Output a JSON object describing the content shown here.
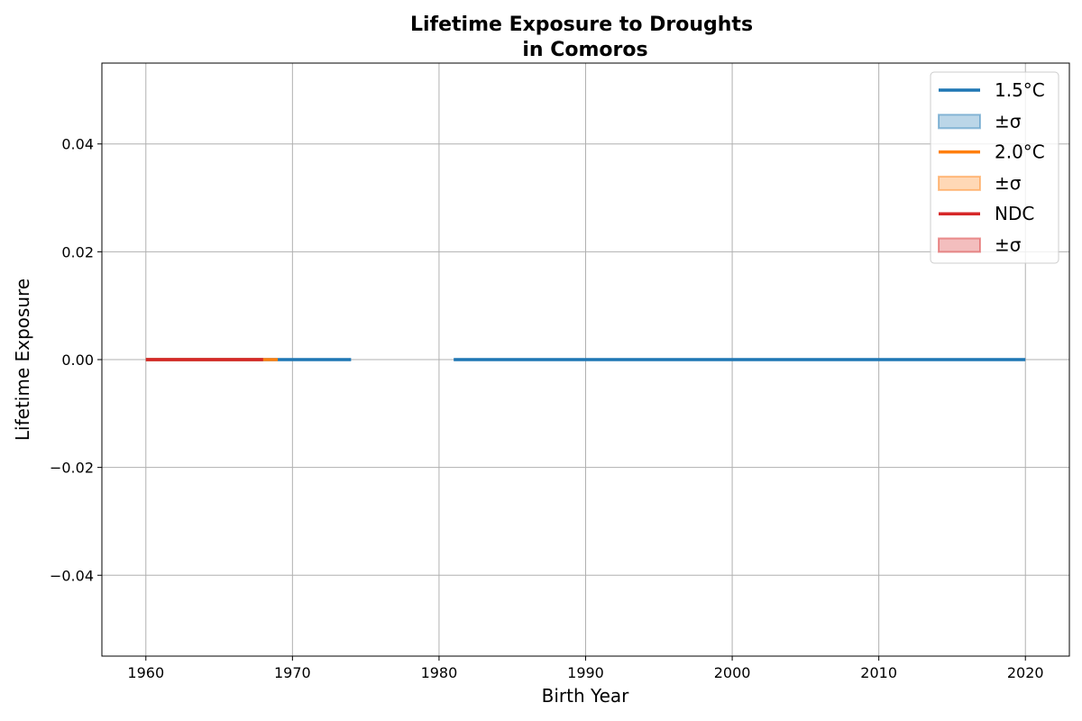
{
  "chart_data": {
    "type": "line",
    "title": [
      "Lifetime Exposure to Droughts",
      "in Comoros"
    ],
    "xlabel": "Birth Year",
    "ylabel": "Lifetime Exposure",
    "xlim": [
      1957,
      2023
    ],
    "ylim": [
      -0.055,
      0.055
    ],
    "xticks": [
      1960,
      1970,
      1980,
      1990,
      2000,
      2010,
      2020
    ],
    "yticks": [
      -0.04,
      -0.02,
      0.0,
      0.02,
      0.04
    ],
    "ytick_labels": [
      "−0.04",
      "−0.02",
      "0.00",
      "0.02",
      "0.04"
    ],
    "grid": true,
    "legend_position": "top-right",
    "series": [
      {
        "name": "1.5°C",
        "color": "#1f77b4",
        "band_label": "±σ",
        "segments": [
          {
            "x": [
              1960,
              1974
            ],
            "y": [
              0,
              0
            ]
          },
          {
            "x": [
              1981,
              2020
            ],
            "y": [
              0,
              0
            ]
          }
        ]
      },
      {
        "name": "2.0°C",
        "color": "#ff7f0e",
        "band_label": "±σ",
        "segments": [
          {
            "x": [
              1960,
              1969
            ],
            "y": [
              0,
              0
            ]
          }
        ]
      },
      {
        "name": "NDC",
        "color": "#d62728",
        "band_label": "±σ",
        "segments": [
          {
            "x": [
              1960,
              1968
            ],
            "y": [
              0,
              0
            ]
          }
        ]
      }
    ]
  }
}
